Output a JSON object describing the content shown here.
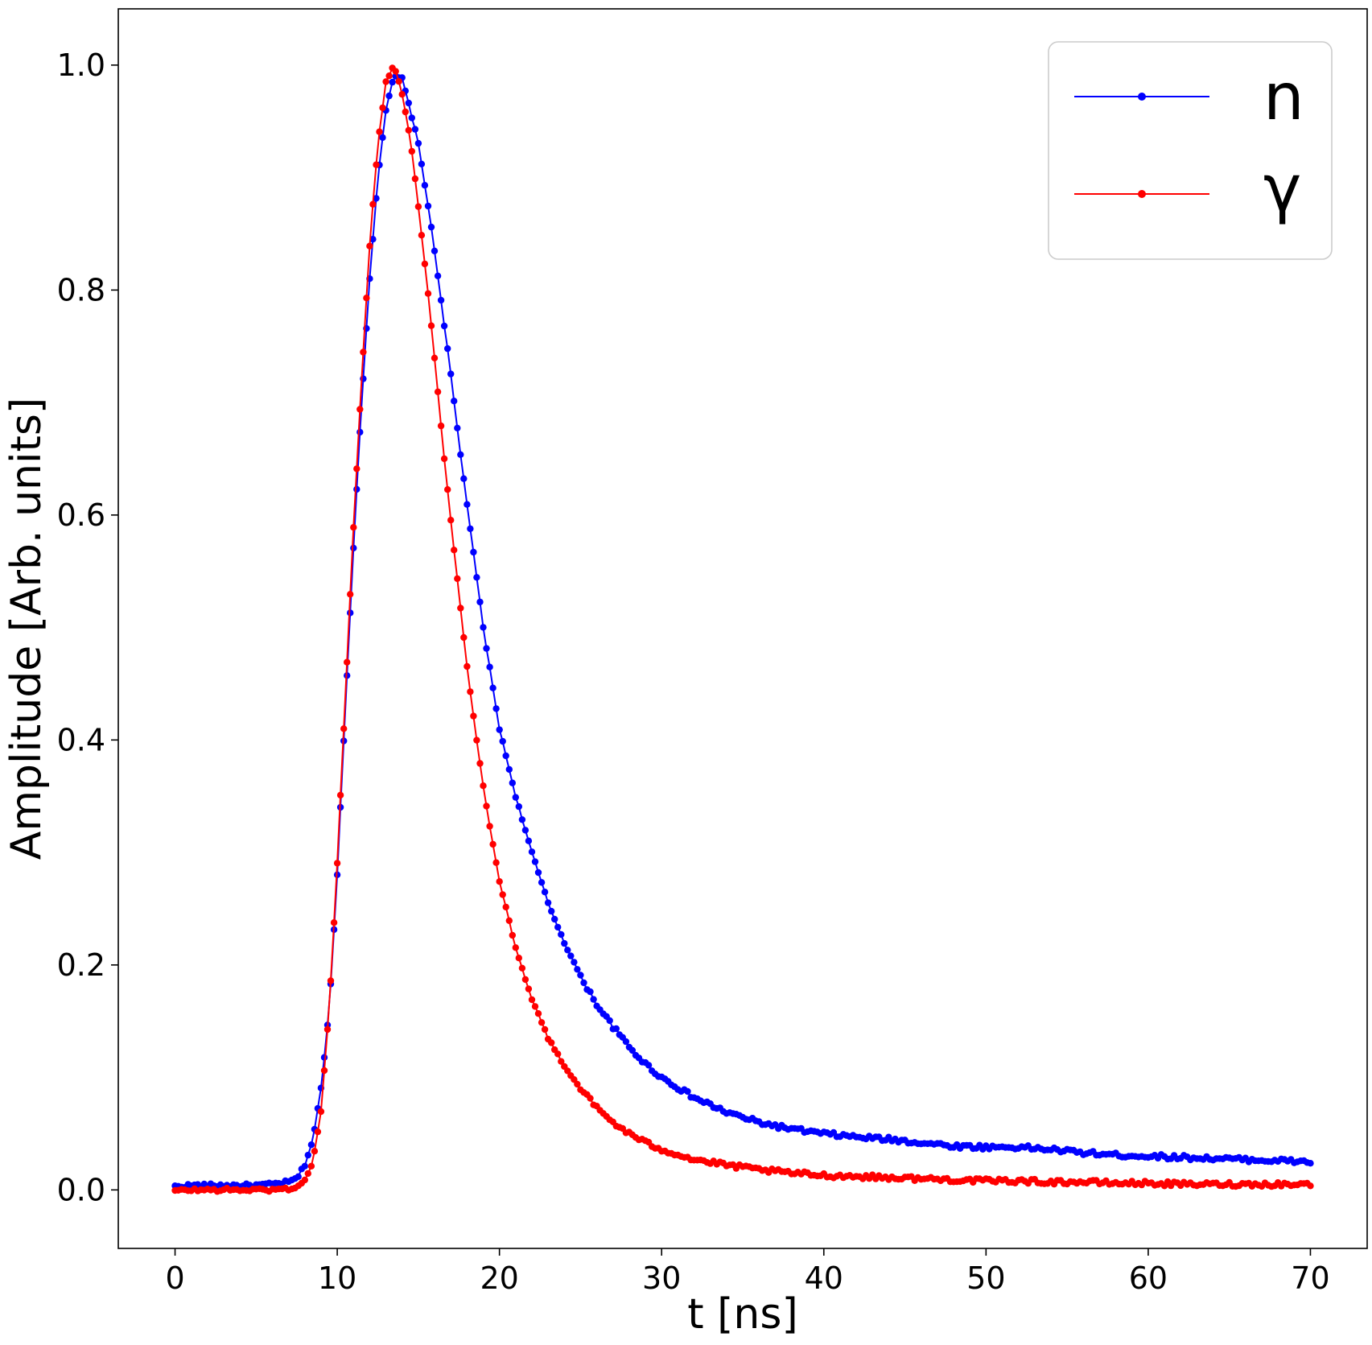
{
  "chart_data": {
    "type": "line",
    "title": "",
    "xlabel": "t [ns]",
    "ylabel": "Amplitude [Arb. units]",
    "xlim": [
      -3.5,
      73.5
    ],
    "ylim": [
      -0.052,
      1.05
    ],
    "xticks": [
      0,
      10,
      20,
      30,
      40,
      50,
      60,
      70
    ],
    "yticks": [
      0.0,
      0.2,
      0.4,
      0.6,
      0.8,
      1.0
    ],
    "xtick_labels": [
      "0",
      "10",
      "20",
      "30",
      "40",
      "50",
      "60",
      "70"
    ],
    "ytick_labels": [
      "0.0",
      "0.2",
      "0.4",
      "0.6",
      "0.8",
      "1.0"
    ],
    "grid": false,
    "legend_position": "top-right",
    "marker": "circle",
    "sampling_interval_ns": 0.2,
    "series": [
      {
        "name": "n",
        "color": "#0000ff",
        "x": [
          0,
          1,
          2,
          3,
          4,
          5,
          6,
          7,
          7.5,
          8,
          8.5,
          9,
          9.5,
          10,
          10.5,
          11,
          11.5,
          12,
          12.5,
          13,
          13.5,
          14,
          14.5,
          15,
          15.5,
          16,
          16.5,
          17,
          17.5,
          18,
          18.5,
          19,
          19.5,
          20,
          21,
          22,
          23,
          24,
          25,
          26,
          27,
          28,
          29,
          30,
          32,
          34,
          36,
          38,
          40,
          42,
          44,
          46,
          48,
          50,
          52,
          54,
          56,
          58,
          60,
          62,
          64,
          66,
          68,
          70
        ],
        "values": [
          0.003,
          0.004,
          0.004,
          0.004,
          0.004,
          0.004,
          0.005,
          0.007,
          0.01,
          0.022,
          0.045,
          0.09,
          0.16,
          0.28,
          0.43,
          0.57,
          0.7,
          0.81,
          0.9,
          0.96,
          0.99,
          0.988,
          0.96,
          0.93,
          0.885,
          0.835,
          0.78,
          0.725,
          0.665,
          0.61,
          0.555,
          0.5,
          0.455,
          0.41,
          0.35,
          0.3,
          0.255,
          0.22,
          0.19,
          0.165,
          0.145,
          0.127,
          0.112,
          0.1,
          0.082,
          0.069,
          0.06,
          0.054,
          0.05,
          0.047,
          0.045,
          0.042,
          0.039,
          0.038,
          0.038,
          0.036,
          0.033,
          0.031,
          0.03,
          0.029,
          0.028,
          0.027,
          0.026,
          0.025
        ]
      },
      {
        "name": "γ",
        "color": "#ff0000",
        "x": [
          0,
          1,
          2,
          3,
          4,
          5,
          6,
          7,
          7.5,
          8,
          8.5,
          9,
          9.5,
          10,
          10.5,
          11,
          11.5,
          12,
          12.5,
          13,
          13.5,
          14,
          14.5,
          15,
          15.5,
          16,
          16.5,
          17,
          17.5,
          18,
          18.5,
          19,
          19.5,
          20,
          21,
          22,
          23,
          24,
          25,
          26,
          27,
          28,
          29,
          30,
          32,
          34,
          36,
          38,
          40,
          42,
          44,
          46,
          48,
          50,
          52,
          54,
          56,
          58,
          60,
          62,
          64,
          66,
          68,
          70
        ],
        "values": [
          -0.001,
          0.0,
          0.0,
          0.0,
          0.0,
          0.0,
          0.0,
          0.001,
          0.003,
          0.008,
          0.025,
          0.07,
          0.16,
          0.29,
          0.44,
          0.59,
          0.72,
          0.84,
          0.93,
          0.985,
          1.0,
          0.975,
          0.935,
          0.875,
          0.81,
          0.74,
          0.665,
          0.595,
          0.53,
          0.465,
          0.41,
          0.36,
          0.315,
          0.275,
          0.215,
          0.17,
          0.135,
          0.11,
          0.09,
          0.073,
          0.06,
          0.05,
          0.042,
          0.036,
          0.027,
          0.022,
          0.018,
          0.015,
          0.013,
          0.012,
          0.011,
          0.01,
          0.009,
          0.008,
          0.008,
          0.007,
          0.007,
          0.006,
          0.006,
          0.005,
          0.005,
          0.005,
          0.005,
          0.005
        ]
      }
    ]
  }
}
